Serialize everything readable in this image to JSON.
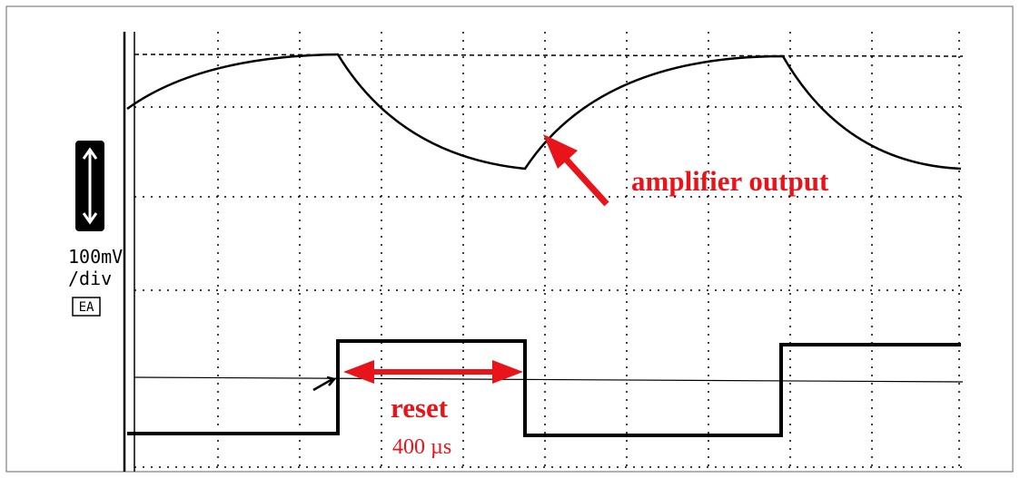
{
  "scale": {
    "volts": "100mV",
    "per": "/div",
    "mode": "EA"
  },
  "annotations": {
    "amplifier": "amplifier output",
    "reset": "reset",
    "duration": "400 µs"
  }
}
